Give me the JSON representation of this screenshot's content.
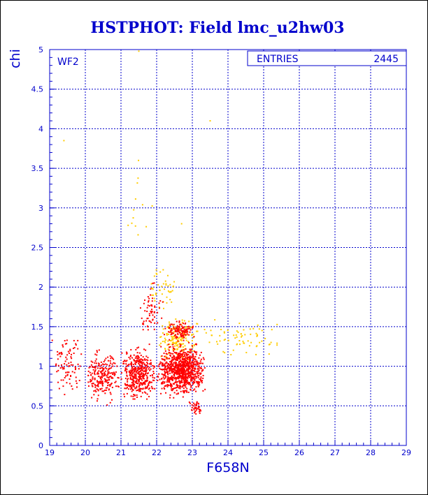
{
  "chart_data": {
    "type": "scatter",
    "title": "HSTPHOT: Field lmc_u2hw03",
    "panel_label": "WF2",
    "stats_box": {
      "label": "ENTRIES",
      "value": "2445"
    },
    "xlabel": "F658N",
    "ylabel": "chi",
    "xlim": [
      19,
      29
    ],
    "ylim": [
      0,
      5
    ],
    "x_ticks": [
      "19",
      "20",
      "21",
      "22",
      "23",
      "24",
      "25",
      "26",
      "27",
      "28",
      "29"
    ],
    "y_ticks": [
      "0",
      "0.5",
      "1",
      "1.5",
      "2",
      "2.5",
      "3",
      "3.5",
      "4",
      "4.5",
      "5"
    ],
    "grid": true,
    "colors": {
      "axes": "#0000cc",
      "title": "#0000cc",
      "series_main": "#ff0000",
      "series_flagged": "#ffcc00"
    },
    "series": [
      {
        "color_key": "series_main",
        "clusters": [
          {
            "x_min": 22.0,
            "x_max": 23.4,
            "y_min": 0.55,
            "y_max": 1.35,
            "count": 900
          },
          {
            "x_min": 21.0,
            "x_max": 22.0,
            "y_min": 0.5,
            "y_max": 1.3,
            "count": 420
          },
          {
            "x_min": 20.0,
            "x_max": 21.0,
            "y_min": 0.45,
            "y_max": 1.3,
            "count": 230
          },
          {
            "x_min": 19.0,
            "x_max": 20.0,
            "y_min": 0.5,
            "y_max": 1.6,
            "count": 90
          },
          {
            "x_min": 22.2,
            "x_max": 23.1,
            "y_min": 1.3,
            "y_max": 1.6,
            "count": 110
          },
          {
            "x_min": 21.5,
            "x_max": 22.2,
            "y_min": 1.3,
            "y_max": 2.1,
            "count": 60
          },
          {
            "x_min": 22.9,
            "x_max": 23.3,
            "y_min": 0.35,
            "y_max": 0.6,
            "count": 40
          }
        ]
      },
      {
        "color_key": "series_flagged",
        "clusters": [
          {
            "x_min": 22.0,
            "x_max": 23.2,
            "y_min": 1.0,
            "y_max": 1.7,
            "count": 180
          },
          {
            "x_min": 23.2,
            "x_max": 25.6,
            "y_min": 1.05,
            "y_max": 1.65,
            "count": 70
          },
          {
            "x_min": 21.8,
            "x_max": 22.6,
            "y_min": 1.6,
            "y_max": 2.4,
            "count": 45
          },
          {
            "x_min": 21.0,
            "x_max": 22.0,
            "y_min": 2.4,
            "y_max": 3.8,
            "count": 12
          }
        ],
        "points": [
          [
            19.4,
            3.85
          ],
          [
            21.5,
            4.98
          ],
          [
            23.5,
            4.1
          ],
          [
            22.7,
            2.8
          ],
          [
            21.2,
            2.78
          ]
        ]
      }
    ]
  }
}
